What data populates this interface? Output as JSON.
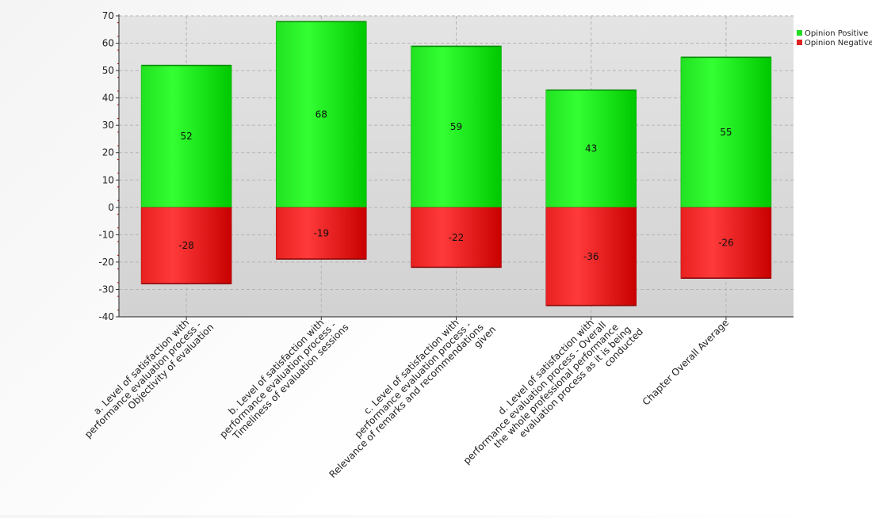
{
  "chart_data": {
    "type": "bar",
    "stacked": true,
    "categories": [
      "a. Level of satisfaction with performance evaluation process - Objectivity of evaluation",
      "b. Level of satisfaction with performance evaluation process - Timeliness of evaluation sessions",
      "c. Level of satisfaction with performance evaluation process - Relevance of remarks and recommendations given",
      "d. Level of satisfaction with performance evaluation process - Overall the whole professional performance evaluation process as it is being conducted",
      "Chapter Overall Average"
    ],
    "series": [
      {
        "name": "Opinion Positive",
        "values": [
          52,
          68,
          59,
          43,
          55
        ],
        "color": "#22ee22"
      },
      {
        "name": "Opinion Negative",
        "values": [
          -28,
          -19,
          -22,
          -36,
          -26
        ],
        "color": "#ee2222"
      }
    ],
    "ylim": [
      -40,
      70
    ],
    "yticks": [
      "70",
      "60",
      "50",
      "40",
      "30",
      "20",
      "10",
      "0",
      "-10",
      "-20",
      "-30",
      "-40"
    ],
    "grid": true,
    "legend_position": "top-right",
    "title": "",
    "xlabel": "",
    "ylabel": ""
  }
}
